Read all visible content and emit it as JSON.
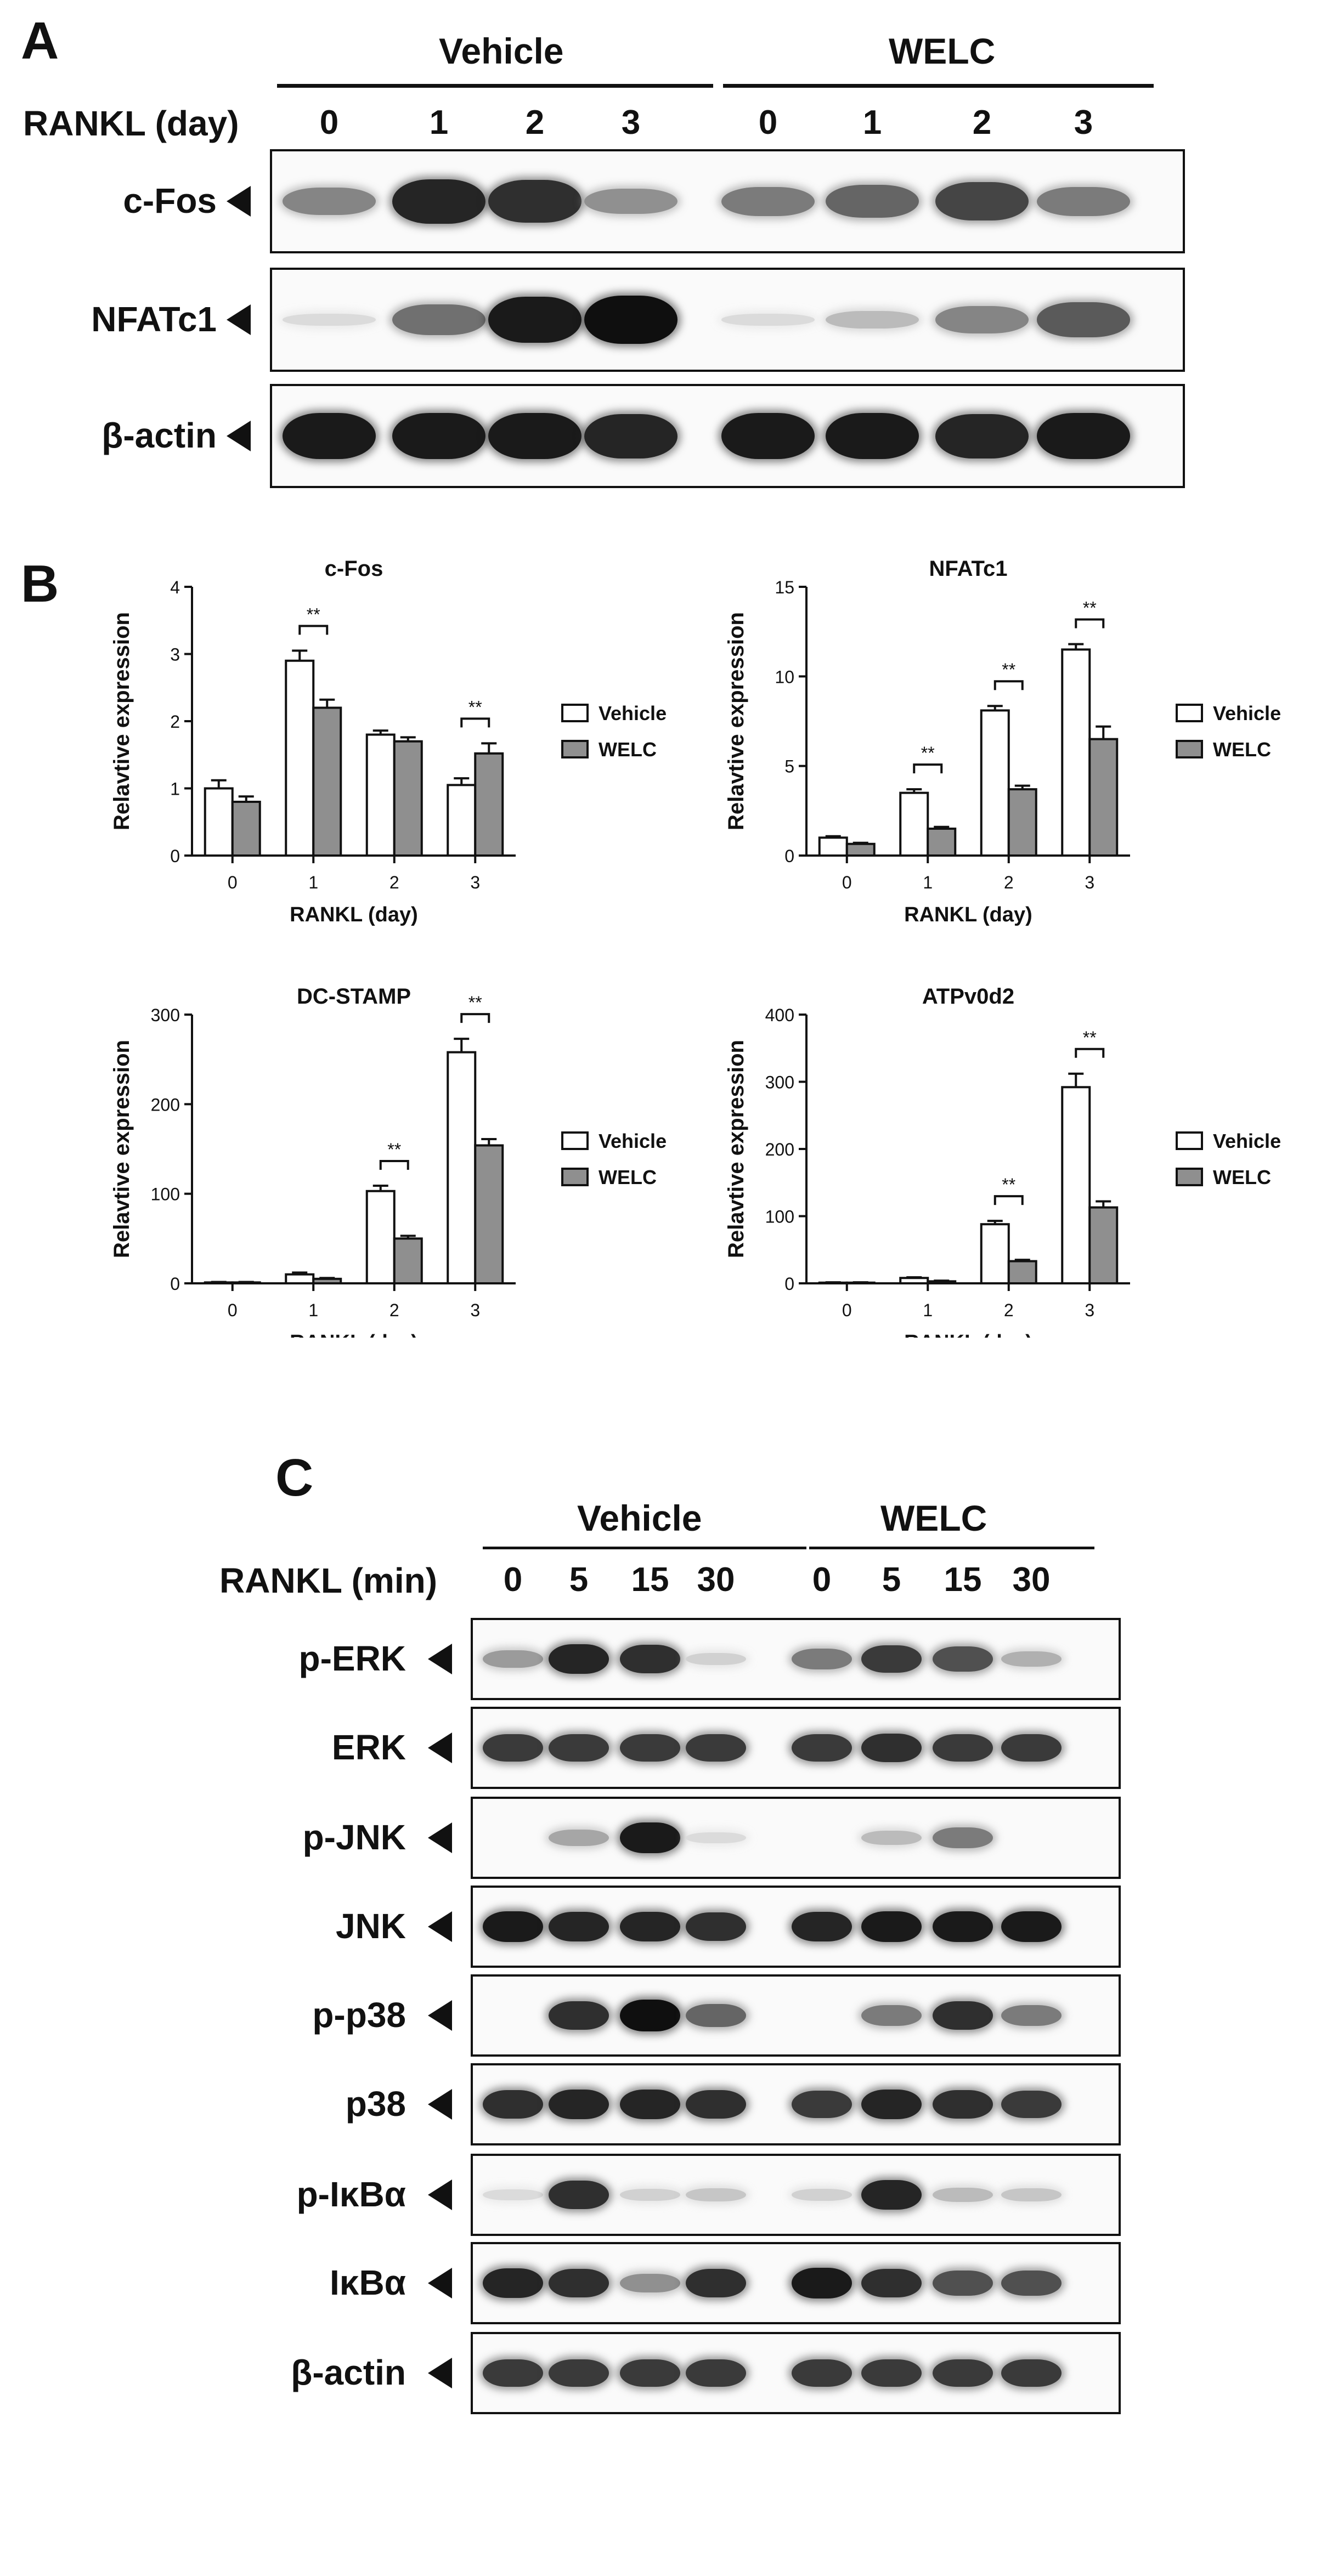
{
  "panelA": {
    "letter": "A",
    "group1": "Vehicle",
    "group2": "WELC",
    "rowhdr": "RANKL (day)",
    "lanes": [
      "0",
      "1",
      "2",
      "3",
      "0",
      "1",
      "2",
      "3"
    ],
    "rows": [
      {
        "label": "c-Fos",
        "level": [
          0.45,
          0.9,
          0.85,
          0.4,
          0.5,
          0.6,
          0.75,
          0.5
        ]
      },
      {
        "label": "NFATc1",
        "level": [
          0.05,
          0.55,
          0.95,
          1.0,
          0.05,
          0.2,
          0.45,
          0.65
        ]
      },
      {
        "label": "β-actin",
        "level": [
          0.95,
          0.95,
          0.95,
          0.9,
          0.95,
          0.95,
          0.9,
          0.95
        ]
      }
    ]
  },
  "panelB": {
    "letter": "B"
  },
  "panelC": {
    "letter": "C",
    "group1": "Vehicle",
    "group2": "WELC",
    "rowhdr": "RANKL (min)",
    "lanes": [
      "0",
      "5",
      "15",
      "30",
      "0",
      "5",
      "15",
      "30"
    ],
    "rows": [
      {
        "label": "p-ERK",
        "level": [
          0.35,
          0.9,
          0.85,
          0.1,
          0.5,
          0.8,
          0.7,
          0.25
        ]
      },
      {
        "label": "ERK",
        "level": [
          0.8,
          0.8,
          0.8,
          0.8,
          0.8,
          0.85,
          0.8,
          0.8
        ]
      },
      {
        "label": "p-JNK",
        "level": [
          0.02,
          0.3,
          0.95,
          0.05,
          0.02,
          0.2,
          0.5,
          0.02
        ]
      },
      {
        "label": "JNK",
        "level": [
          0.95,
          0.9,
          0.9,
          0.85,
          0.9,
          0.95,
          0.95,
          0.95
        ]
      },
      {
        "label": "p-p38",
        "level": [
          0.0,
          0.85,
          1.0,
          0.6,
          0.0,
          0.5,
          0.85,
          0.5
        ]
      },
      {
        "label": "p38",
        "level": [
          0.85,
          0.9,
          0.9,
          0.85,
          0.8,
          0.9,
          0.85,
          0.8
        ]
      },
      {
        "label": "p-IκBα",
        "level": [
          0.05,
          0.85,
          0.1,
          0.15,
          0.1,
          0.9,
          0.2,
          0.15
        ]
      },
      {
        "label": "IκBα",
        "level": [
          0.9,
          0.85,
          0.4,
          0.85,
          0.95,
          0.85,
          0.7,
          0.7
        ]
      },
      {
        "label": "β-actin",
        "level": [
          0.8,
          0.8,
          0.8,
          0.8,
          0.8,
          0.8,
          0.8,
          0.8
        ]
      }
    ]
  },
  "chart_data": [
    {
      "type": "bar",
      "title": "c-Fos",
      "xlabel": "RANKL (day)",
      "ylabel": "Relavtive expression",
      "categories": [
        "0",
        "1",
        "2",
        "3"
      ],
      "ylim": [
        0,
        4
      ],
      "yticks": [
        "0",
        "1",
        "2",
        "3",
        "4"
      ],
      "series": [
        {
          "name": "Vehicle",
          "values": [
            1.0,
            2.9,
            1.8,
            1.05
          ],
          "errors": [
            0.12,
            0.15,
            0.06,
            0.1
          ]
        },
        {
          "name": "WELC",
          "values": [
            0.8,
            2.2,
            1.7,
            1.52
          ],
          "errors": [
            0.08,
            0.12,
            0.06,
            0.15
          ]
        }
      ],
      "significance": [
        {
          "category": "1",
          "label": "**"
        },
        {
          "category": "3",
          "label": "**"
        }
      ]
    },
    {
      "type": "bar",
      "title": "NFATc1",
      "xlabel": "RANKL (day)",
      "ylabel": "Relavtive expression",
      "categories": [
        "0",
        "1",
        "2",
        "3"
      ],
      "ylim": [
        0,
        15
      ],
      "yticks": [
        "0",
        "5",
        "10",
        "15"
      ],
      "series": [
        {
          "name": "Vehicle",
          "values": [
            1.0,
            3.5,
            8.1,
            11.5
          ],
          "errors": [
            0.08,
            0.2,
            0.25,
            0.3
          ]
        },
        {
          "name": "WELC",
          "values": [
            0.65,
            1.5,
            3.7,
            6.5
          ],
          "errors": [
            0.06,
            0.1,
            0.2,
            0.7
          ]
        }
      ],
      "significance": [
        {
          "category": "1",
          "label": "**"
        },
        {
          "category": "2",
          "label": "**"
        },
        {
          "category": "3",
          "label": "**"
        }
      ]
    },
    {
      "type": "bar",
      "title": "DC-STAMP",
      "xlabel": "RANKL (day)",
      "ylabel": "Relavtive expression",
      "categories": [
        "0",
        "1",
        "2",
        "3"
      ],
      "ylim": [
        0,
        300
      ],
      "yticks": [
        "0",
        "100",
        "200",
        "300"
      ],
      "series": [
        {
          "name": "Vehicle",
          "values": [
            1,
            10,
            103,
            258
          ],
          "errors": [
            0.5,
            2,
            6,
            15
          ]
        },
        {
          "name": "WELC",
          "values": [
            1,
            5,
            50,
            154
          ],
          "errors": [
            0.5,
            1,
            3,
            7
          ]
        }
      ],
      "significance": [
        {
          "category": "2",
          "label": "**"
        },
        {
          "category": "3",
          "label": "**"
        }
      ]
    },
    {
      "type": "bar",
      "title": "ATPv0d2",
      "xlabel": "RANKL (day)",
      "ylabel": "Relavtive expression",
      "categories": [
        "0",
        "1",
        "2",
        "3"
      ],
      "ylim": [
        0,
        400
      ],
      "yticks": [
        "0",
        "100",
        "200",
        "300",
        "400"
      ],
      "series": [
        {
          "name": "Vehicle",
          "values": [
            1,
            8,
            88,
            292
          ],
          "errors": [
            0.5,
            1,
            5,
            20
          ]
        },
        {
          "name": "WELC",
          "values": [
            1,
            3,
            33,
            113
          ],
          "errors": [
            0.5,
            1,
            2,
            9
          ]
        }
      ],
      "significance": [
        {
          "category": "2",
          "label": "**"
        },
        {
          "category": "3",
          "label": "**"
        }
      ]
    }
  ],
  "legend": {
    "vehicle": "Vehicle",
    "welc": "WELC"
  }
}
